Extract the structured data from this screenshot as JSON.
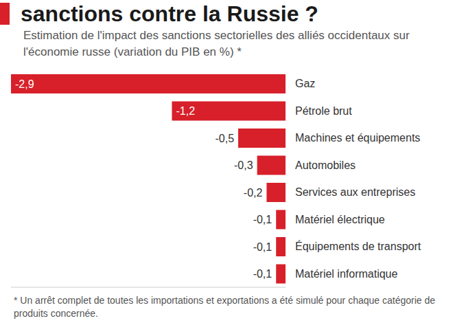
{
  "chart_data": {
    "type": "bar",
    "title": "sanctions contre la Russie ?",
    "subtitle": "Estimation de l'impact des sanctions sectorielles des alliés occidentaux sur l'économie russe (variation du PIB en %) *",
    "annotations": [
      "* Un arrêt complet de toutes les importations et exportations a été simulé pour chaque catégorie de produits concernée."
    ],
    "categories": [
      "Gaz",
      "Pétrole brut",
      "Machines et équipements",
      "Automobiles",
      "Services aux entreprises",
      "Matériel électrique",
      "Équipements de transport",
      "Matériel informatique"
    ],
    "values": [
      -2.9,
      -1.2,
      -0.5,
      -0.3,
      -0.2,
      -0.1,
      -0.1,
      -0.1
    ],
    "value_labels": [
      "-2,9",
      "-1,2",
      "-0,5",
      "-0,3",
      "-0,2",
      "-0,1",
      "-0,1",
      "-0,1"
    ],
    "color": "#d7202a",
    "orientation": "horizontal",
    "data_labels": true,
    "xlim": [
      -2.9,
      0
    ],
    "tick_labels": "y",
    "grid": false
  }
}
